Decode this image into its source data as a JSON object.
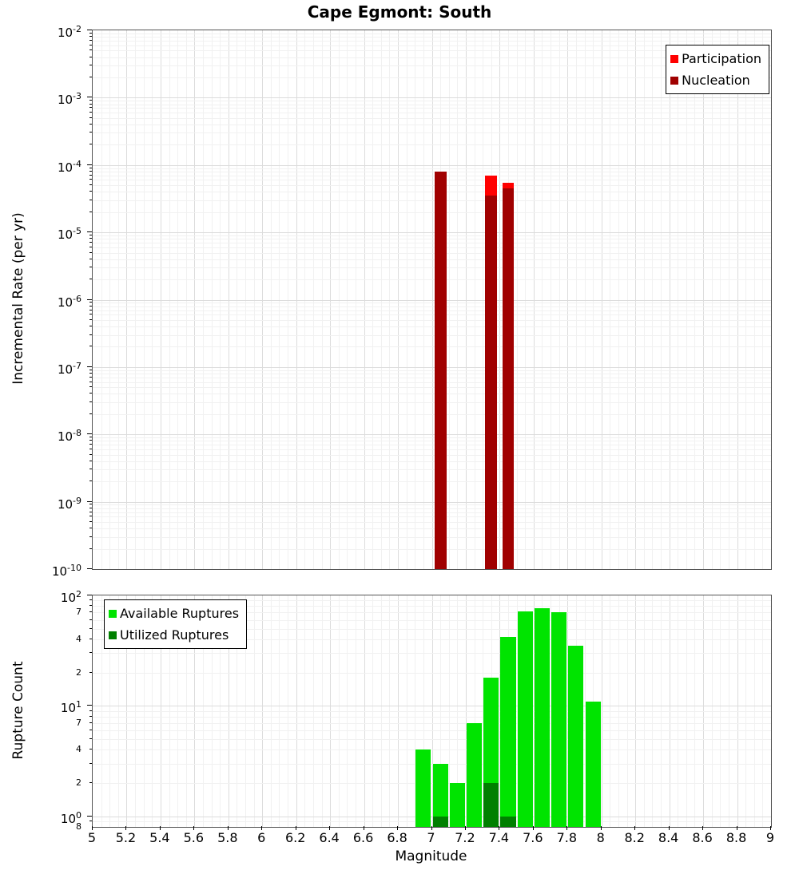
{
  "title": "Cape Egmont: South",
  "xlabel": "Magnitude",
  "xlim": [
    5,
    9
  ],
  "xtick_values": [
    5,
    5.2,
    5.4,
    5.6,
    5.8,
    6,
    6.2,
    6.4,
    6.6,
    6.8,
    7,
    7.2,
    7.4,
    7.6,
    7.8,
    8,
    8.2,
    8.4,
    8.6,
    8.8,
    9
  ],
  "xtick_labels": [
    "5",
    "5.2",
    "5.4",
    "5.6",
    "5.8",
    "6",
    "6.2",
    "6.4",
    "6.6",
    "6.8",
    "7",
    "7.2",
    "7.4",
    "7.6",
    "7.8",
    "8",
    "8.2",
    "8.4",
    "8.6",
    "8.8",
    "9"
  ],
  "chart_data": [
    {
      "type": "bar",
      "panel": "top",
      "ylabel": "Incremental Rate (per yr)",
      "yscale": "log",
      "ylim": [
        1e-10,
        0.01
      ],
      "ytick_exponents": [
        -2,
        -3,
        -4,
        -5,
        -6,
        -7,
        -8,
        -9,
        -10
      ],
      "bar_width": 0.07,
      "grid": true,
      "legend_position": "top-right",
      "series": [
        {
          "name": "Participation",
          "color": "#ff0000",
          "x": [
            7.05,
            7.35,
            7.45
          ],
          "values": [
            8e-05,
            7e-05,
            5.5e-05
          ]
        },
        {
          "name": "Nucleation",
          "color": "#a00000",
          "x": [
            7.05,
            7.35,
            7.45
          ],
          "values": [
            8e-05,
            3.5e-05,
            4.5e-05
          ]
        }
      ]
    },
    {
      "type": "bar",
      "panel": "bottom",
      "ylabel": "Rupture Count",
      "yscale": "log",
      "ylim": [
        0.8,
        100
      ],
      "ytick_exponents": [
        2,
        1,
        0
      ],
      "ytick_minor_labeled": [
        {
          "value": 70,
          "label": "7"
        },
        {
          "value": 40,
          "label": "4"
        },
        {
          "value": 20,
          "label": "2"
        },
        {
          "value": 7,
          "label": "7"
        },
        {
          "value": 4,
          "label": "4"
        },
        {
          "value": 2,
          "label": "2"
        },
        {
          "value": 0.8,
          "label": "8"
        }
      ],
      "bar_width": 0.09,
      "grid": true,
      "legend_position": "top-left",
      "series": [
        {
          "name": "Available Ruptures",
          "color": "#00e400",
          "x": [
            6.95,
            7.05,
            7.15,
            7.25,
            7.35,
            7.45,
            7.55,
            7.65,
            7.75,
            7.85,
            7.95
          ],
          "values": [
            4,
            3,
            2,
            7,
            18,
            42,
            72,
            76,
            70,
            35,
            11
          ]
        },
        {
          "name": "Utilized Ruptures",
          "color": "#008000",
          "x": [
            7.05,
            7.35,
            7.45
          ],
          "values": [
            1,
            2,
            1
          ]
        }
      ]
    }
  ]
}
